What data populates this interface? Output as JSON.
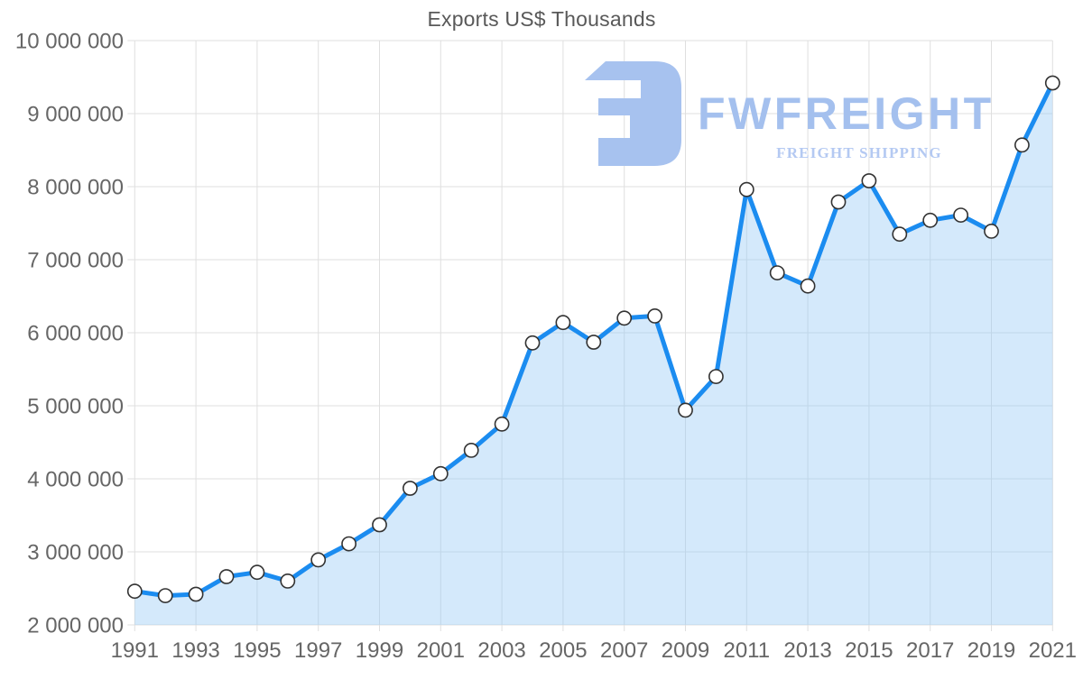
{
  "chart_data": {
    "type": "area",
    "title": "Exports US$ Thousands",
    "xlabel": "",
    "ylabel": "",
    "x": [
      1991,
      1992,
      1993,
      1994,
      1995,
      1996,
      1997,
      1998,
      1999,
      2000,
      2001,
      2002,
      2003,
      2004,
      2005,
      2006,
      2007,
      2008,
      2009,
      2010,
      2011,
      2012,
      2013,
      2014,
      2015,
      2016,
      2017,
      2018,
      2019,
      2020,
      2021
    ],
    "series": [
      {
        "name": "Exports US$ Thousands",
        "values": [
          2460000,
          2400000,
          2420000,
          2660000,
          2720000,
          2600000,
          2890000,
          3110000,
          3370000,
          3870000,
          4070000,
          4390000,
          4750000,
          5860000,
          6140000,
          5870000,
          6200000,
          6230000,
          4940000,
          5400000,
          7960000,
          6820000,
          6640000,
          7790000,
          8080000,
          7350000,
          7540000,
          7610000,
          7390000,
          8570000,
          9420000
        ]
      }
    ],
    "ylim": [
      2000000,
      10000000
    ],
    "ytick_step": 1000000,
    "ytick_labels": [
      "2 000 000",
      "3 000 000",
      "4 000 000",
      "5 000 000",
      "6 000 000",
      "7 000 000",
      "8 000 000",
      "9 000 000",
      "10 000 000"
    ],
    "xtick_labels": [
      "1991",
      "1993",
      "1995",
      "1997",
      "1999",
      "2001",
      "2003",
      "2005",
      "2007",
      "2009",
      "2011",
      "2013",
      "2015",
      "2017",
      "2019",
      "2021"
    ],
    "grid": "both",
    "legend": "none",
    "marker": "circle",
    "styles": {
      "title_color": "#595959",
      "tick_label_color": "#666666",
      "grid_color": "#dfdfdf",
      "line_color": "#1b8cf0",
      "area_fill": "rgba(147, 199, 244, 0.40)",
      "marker_fill": "#ffffff",
      "marker_stroke": "#333333"
    }
  },
  "watermark": {
    "brand": "FWFREIGHT",
    "tagline": "FREIGHT SHIPPING",
    "logo_icon": "fwfreight-logo",
    "logo_color": "#a7c2ef",
    "brand_color": "#a4c0ee",
    "tagline_color": "#b4c9f2"
  }
}
